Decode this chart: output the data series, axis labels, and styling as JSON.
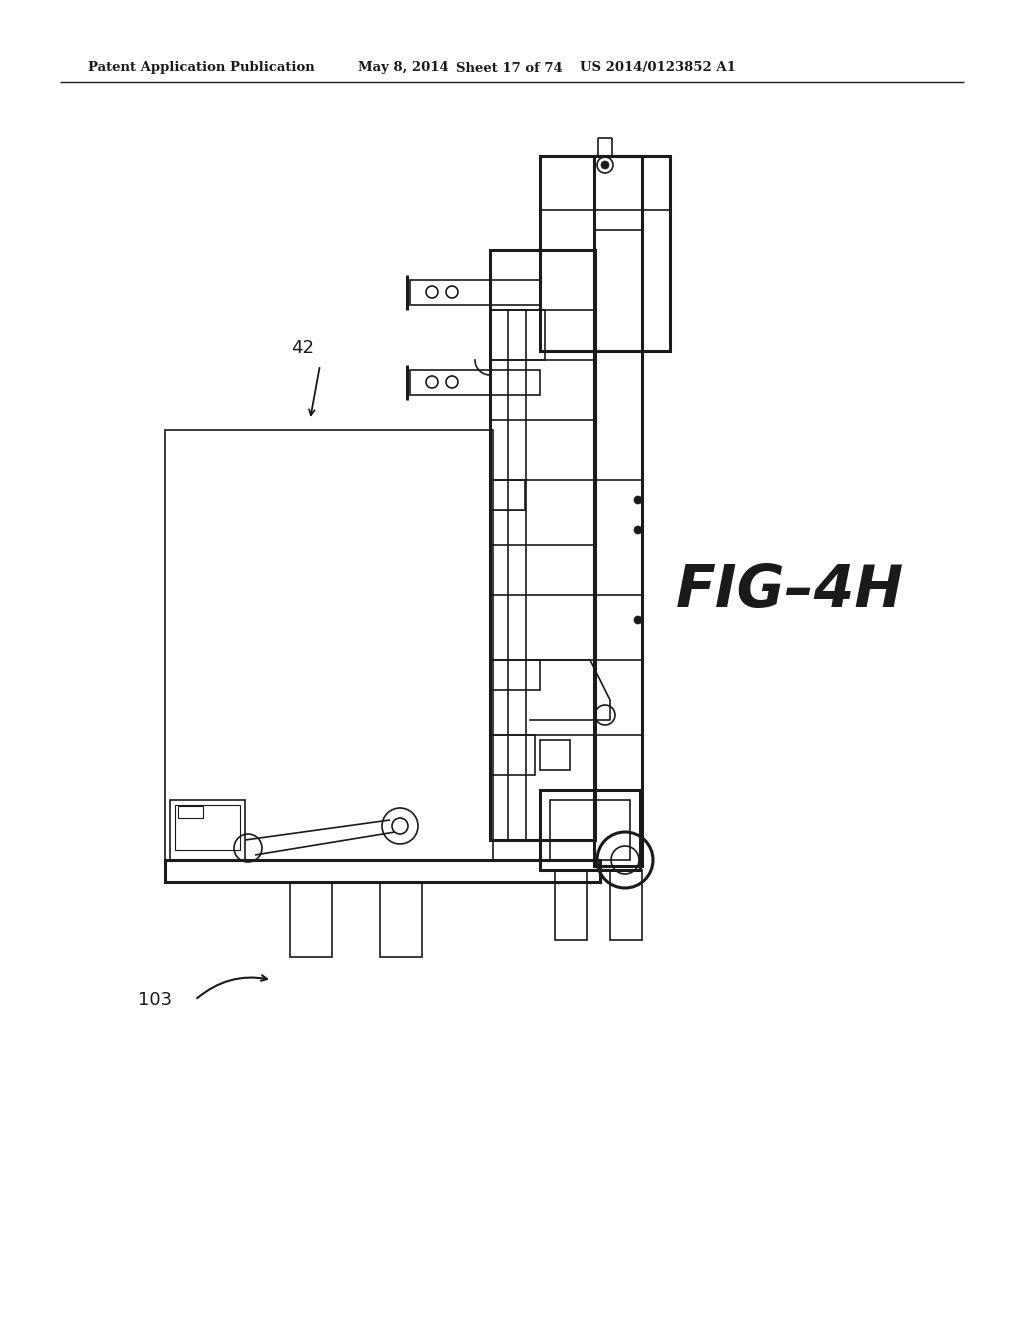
{
  "bg_color": "#ffffff",
  "header_text": "Patent Application Publication",
  "header_date": "May 8, 2014",
  "header_sheet": "Sheet 17 of 74",
  "header_patent": "US 2014/0123852 A1",
  "fig_label": "FIG–4H",
  "label_42": "42",
  "label_103": "103",
  "line_color": "#1a1a1a",
  "lw": 1.2,
  "hlw": 2.2
}
